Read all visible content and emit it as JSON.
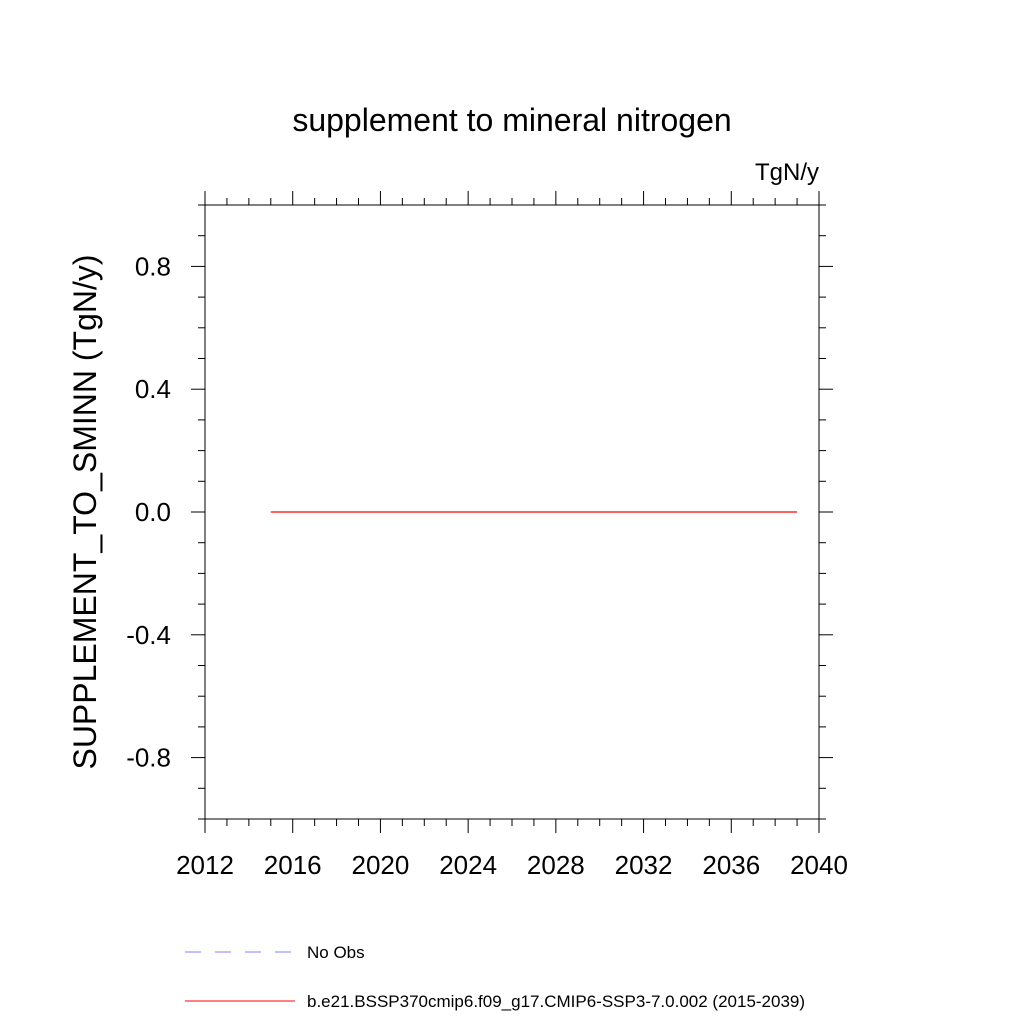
{
  "chart_data": {
    "type": "line",
    "title": "supplement to mineral nitrogen",
    "units_label": "TgN/y",
    "ylabel": "SUPPLEMENT_TO_SMINN  (TgN/y)",
    "xlabel": "",
    "xlim": [
      2012,
      2040
    ],
    "ylim": [
      -1.0,
      1.0
    ],
    "x_ticks": [
      2012,
      2016,
      2020,
      2024,
      2028,
      2032,
      2036,
      2040
    ],
    "x_tick_labels": [
      "2012",
      "2016",
      "2020",
      "2024",
      "2028",
      "2032",
      "2036",
      "2040"
    ],
    "x_minor_step": 1,
    "y_ticks": [
      -0.8,
      -0.4,
      0.0,
      0.4,
      0.8
    ],
    "y_tick_labels": [
      "-0.8",
      "-0.4",
      "0.0",
      "0.4",
      "0.8"
    ],
    "y_minor_step": 0.1,
    "grid": false,
    "series": [
      {
        "name": "b.e21.BSSP370cmip6.f09_g17.CMIP6-SSP3-7.0.002 (2015-2039)",
        "color": "#ff0000",
        "dash": "solid",
        "x": [
          2015,
          2016,
          2017,
          2018,
          2019,
          2020,
          2021,
          2022,
          2023,
          2024,
          2025,
          2026,
          2027,
          2028,
          2029,
          2030,
          2031,
          2032,
          2033,
          2034,
          2035,
          2036,
          2037,
          2038,
          2039
        ],
        "values": [
          0,
          0,
          0,
          0,
          0,
          0,
          0,
          0,
          0,
          0,
          0,
          0,
          0,
          0,
          0,
          0,
          0,
          0,
          0,
          0,
          0,
          0,
          0,
          0,
          0
        ]
      }
    ],
    "legend": {
      "placement": "bottom",
      "entries": [
        {
          "label": "No Obs",
          "color": "#8080ff",
          "dash": "dashed"
        },
        {
          "label": "b.e21.BSSP370cmip6.f09_g17.CMIP6-SSP3-7.0.002 (2015-2039)",
          "color": "#ff0000",
          "dash": "solid"
        }
      ]
    }
  }
}
